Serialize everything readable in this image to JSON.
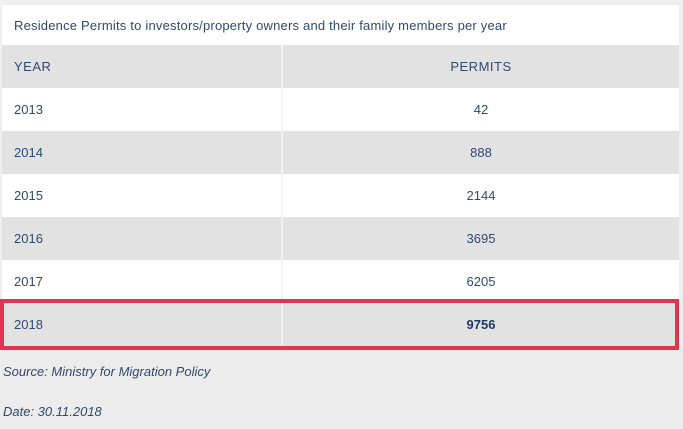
{
  "title": "Residence Permits to investors/property owners and their family members per year",
  "table": {
    "headers": {
      "year": "YEAR",
      "permits": "PERMITS"
    },
    "rows": [
      {
        "year": "2013",
        "permits": "42"
      },
      {
        "year": "2014",
        "permits": "888"
      },
      {
        "year": "2015",
        "permits": "2144"
      },
      {
        "year": "2016",
        "permits": "3695"
      },
      {
        "year": "2017",
        "permits": "6205"
      },
      {
        "year": "2018",
        "permits": "9756"
      }
    ],
    "highlighted_year": "2018"
  },
  "footer": {
    "source": "Source: Ministry for Migration Policy",
    "date": "Date: 30.11.2018"
  },
  "colors": {
    "text_navy": "#2e4a71",
    "bold_value_navy": "#1f3a66",
    "highlight_red": "#e23350",
    "row_grey": "#e2e2e2",
    "footer_grey": "#ececec",
    "page_margin_grey": "#efefef"
  },
  "chart_data": {
    "type": "table",
    "title": "Residence Permits to investors/property owners and their family members per year",
    "columns": [
      "YEAR",
      "PERMITS"
    ],
    "categories": [
      "2013",
      "2014",
      "2015",
      "2016",
      "2017",
      "2018"
    ],
    "values": [
      42,
      888,
      2144,
      3695,
      6205,
      9756
    ],
    "highlighted_row": "2018",
    "source": "Ministry for Migration Policy",
    "date": "30.11.2018"
  }
}
